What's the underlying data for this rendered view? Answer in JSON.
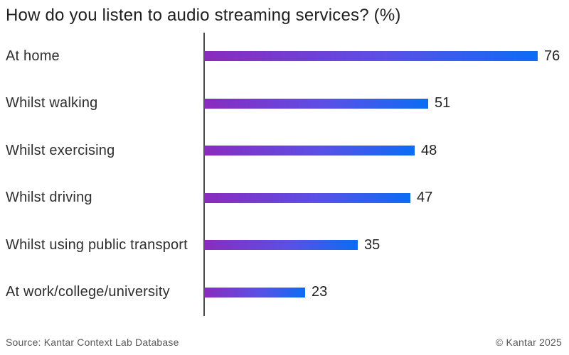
{
  "title": "How do you listen to audio streaming services? (%)",
  "footer": {
    "source": "Source: Kantar Context Lab Database",
    "copyright": "© Kantar 2025"
  },
  "colors": {
    "bar_gradient_start": "#8a2bbe",
    "bar_gradient_mid": "#5b50e6",
    "bar_gradient_end": "#0b6cf4",
    "axis_line": "#4a4a4c",
    "text_primary": "#1f1f1f",
    "text_footer": "#58585a"
  },
  "chart_data": {
    "type": "bar",
    "orientation": "horizontal",
    "title": "How do you listen to audio streaming services? (%)",
    "categories": [
      "At home",
      "Whilst walking",
      "Whilst exercising",
      "Whilst driving",
      "Whilst using public transport",
      "At work/college/university"
    ],
    "values": [
      76,
      51,
      48,
      47,
      35,
      23
    ],
    "value_suffix": "",
    "xlabel": "",
    "ylabel": "",
    "xlim": [
      0,
      81
    ],
    "grid": false,
    "legend": false,
    "value_labels": true
  }
}
